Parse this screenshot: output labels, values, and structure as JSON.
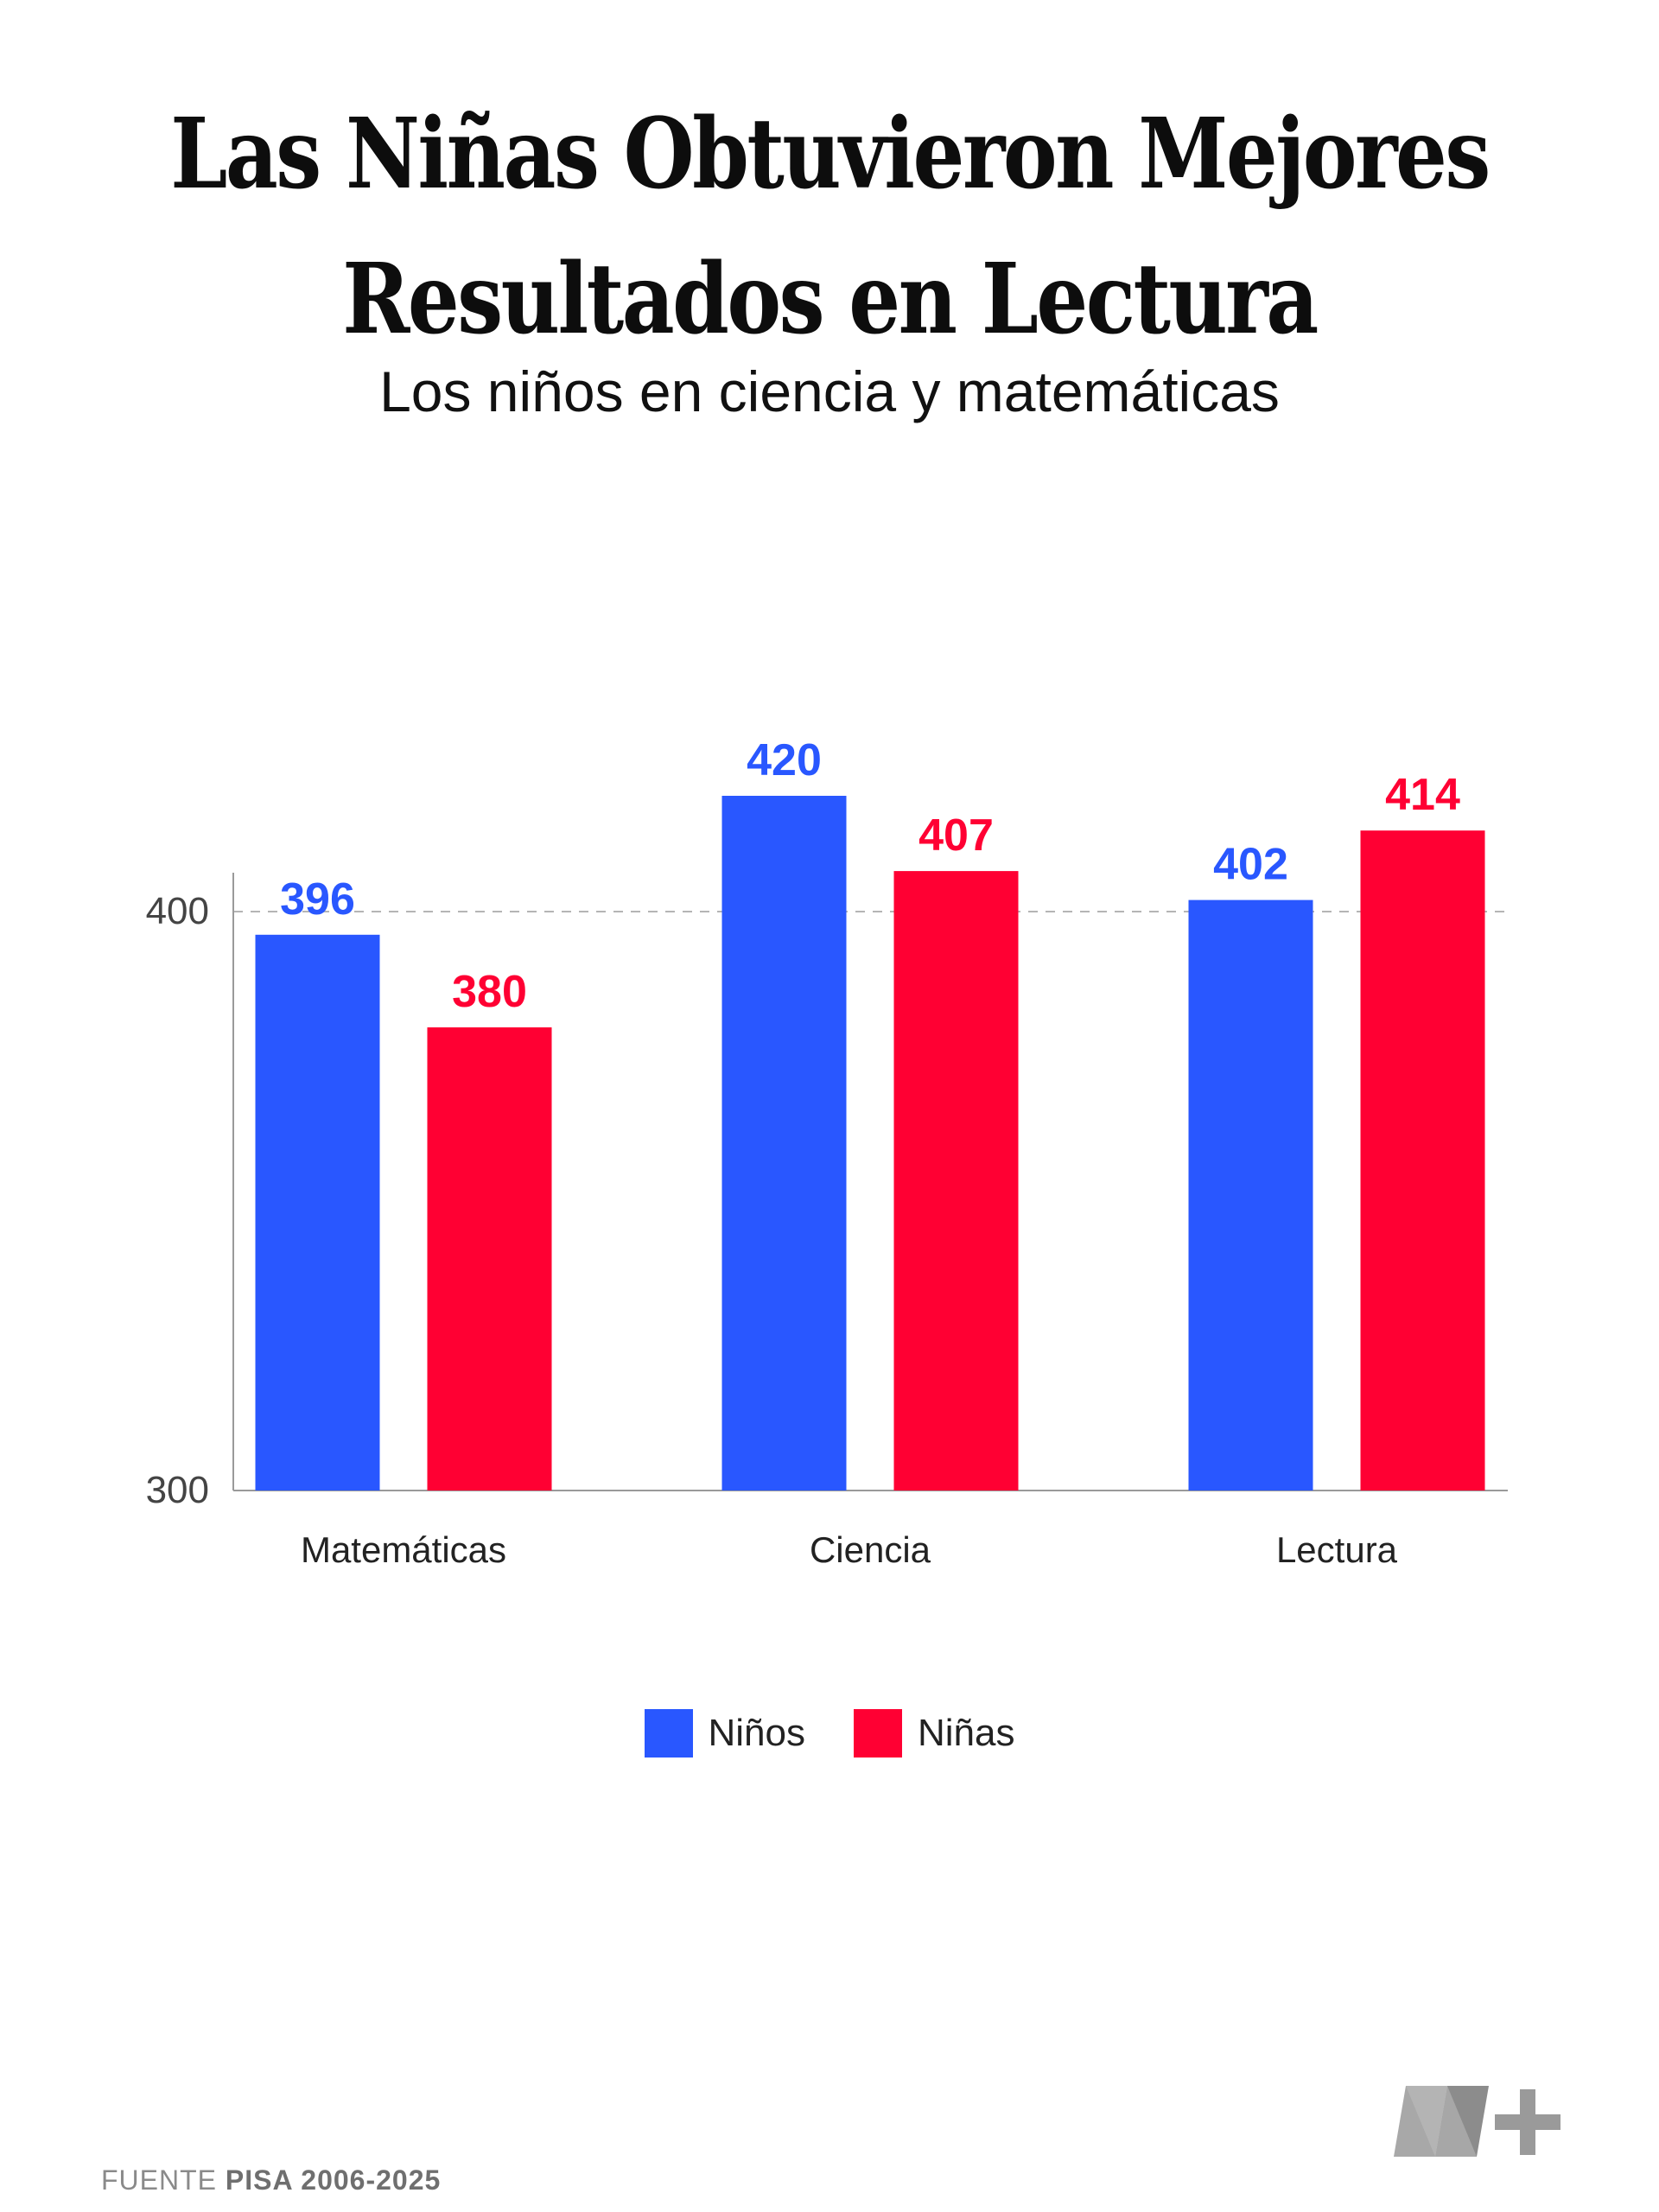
{
  "title_line1": "Las Niñas Obtuvieron Mejores",
  "title_line2": "Resultados en Lectura",
  "subtitle": "Los niños en ciencia y matemáticas",
  "source_prefix": "FUENTE",
  "source_name": "PISA 2006-2025",
  "logo": "n-plus-logo",
  "chart_data": {
    "type": "bar",
    "categories": [
      "Matemáticas",
      "Ciencia",
      "Lectura"
    ],
    "series": [
      {
        "name": "Niños",
        "color": "#2957ff",
        "values": [
          396,
          420,
          402
        ]
      },
      {
        "name": "Niñas",
        "color": "#ff0033",
        "values": [
          380,
          407,
          414
        ]
      }
    ],
    "ylim": [
      300,
      420
    ],
    "yticks": [
      "300",
      "400"
    ],
    "reference_line": 400,
    "legend_position": "bottom-center"
  }
}
